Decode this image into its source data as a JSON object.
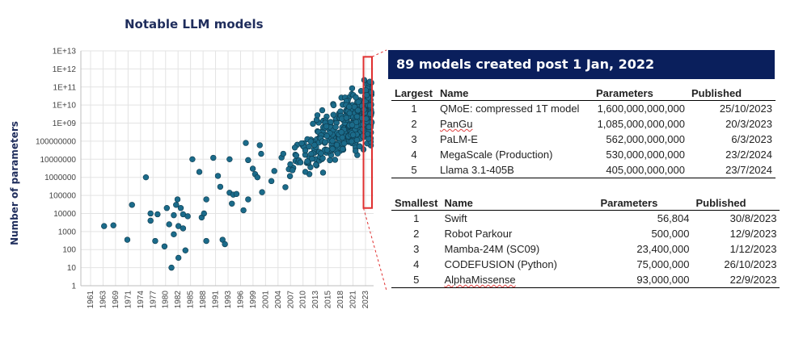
{
  "chart_data": {
    "type": "scatter",
    "title": "Notable LLM models",
    "xlabel": "",
    "ylabel": "Number of parameters",
    "y_scale": "log",
    "ylim": [
      1,
      10000000000000
    ],
    "y_ticks": [
      "1",
      "10",
      "100",
      "1000",
      "10000",
      "100000",
      "1000000",
      "10000000",
      "100000000",
      "1E+09",
      "1E+10",
      "1E+11",
      "1E+12",
      "1E+13"
    ],
    "x_ticks": [
      "1961",
      "1963",
      "1969",
      "1971",
      "1974",
      "1977",
      "1980",
      "1982",
      "1985",
      "1988",
      "1991",
      "1993",
      "1996",
      "1999",
      "2001",
      "2004",
      "2007",
      "2010",
      "2013",
      "2015",
      "2018",
      "2021",
      "2023"
    ],
    "xlim": [
      1961,
      2024
    ],
    "grid": true,
    "marker_color": "#1b6b8a",
    "highlight_box_color": "#e03030",
    "points": [
      [
        1966,
        2000
      ],
      [
        1968,
        2200
      ],
      [
        1971,
        350
      ],
      [
        1972,
        30000
      ],
      [
        1975,
        1000000
      ],
      [
        1976,
        4000
      ],
      [
        1976,
        10000
      ],
      [
        1977,
        300
      ],
      [
        1977.5,
        9000
      ],
      [
        1979,
        150
      ],
      [
        1979.5,
        20000
      ],
      [
        1980,
        2500
      ],
      [
        1980.5,
        10
      ],
      [
        1981,
        8000
      ],
      [
        1981,
        700
      ],
      [
        1981.5,
        30000
      ],
      [
        1981.8,
        60000
      ],
      [
        1982,
        2000
      ],
      [
        1982,
        35
      ],
      [
        1982.5,
        20000
      ],
      [
        1983,
        9000
      ],
      [
        1983,
        1500
      ],
      [
        1983.5,
        90
      ],
      [
        1984,
        7000
      ],
      [
        1985,
        10000000
      ],
      [
        1986.5,
        2000000
      ],
      [
        1987,
        6000
      ],
      [
        1987.5,
        10000
      ],
      [
        1988,
        300
      ],
      [
        1988,
        60000
      ],
      [
        1989.5,
        12000000
      ],
      [
        1990.5,
        1200000
      ],
      [
        1991,
        300000
      ],
      [
        1991.5,
        350
      ],
      [
        1992,
        200
      ],
      [
        1993,
        10000000
      ],
      [
        1993,
        140000
      ],
      [
        1993.5,
        35000
      ],
      [
        1993.8,
        110000
      ],
      [
        1994.5,
        120000
      ],
      [
        1996,
        15000
      ],
      [
        1996.5,
        80000000
      ],
      [
        1997,
        9000000
      ],
      [
        1997,
        60000
      ],
      [
        1998,
        3000000
      ],
      [
        1998.5,
        1500000
      ],
      [
        1999,
        1000000
      ],
      [
        1999.5,
        60000000
      ],
      [
        1999.8,
        20000000
      ],
      [
        2000,
        150000
      ]
    ],
    "highlight_region": {
      "x_from": 2022,
      "x_to": 2024
    }
  },
  "panel": {
    "header": "89 models created post 1 Jan, 2022",
    "largest": {
      "col_rank": "Largest",
      "col_name": "Name",
      "col_params": "Parameters",
      "col_published": "Published",
      "rows": [
        {
          "rank": "1",
          "name": "QMoE: compressed 1T model",
          "params": "1,600,000,000,000",
          "published": "25/10/2023"
        },
        {
          "rank": "2",
          "name": "PanGu",
          "params": "1,085,000,000,000",
          "published": "20/3/2023"
        },
        {
          "rank": "3",
          "name": "PaLM-E",
          "params": "562,000,000,000",
          "published": "6/3/2023"
        },
        {
          "rank": "4",
          "name": "MegaScale (Production)",
          "params": "530,000,000,000",
          "published": "23/2/2024"
        },
        {
          "rank": "5",
          "name": "Llama 3.1-405B",
          "params": "405,000,000,000",
          "published": "23/7/2024"
        }
      ]
    },
    "smallest": {
      "col_rank": "Smallest",
      "col_name": "Name",
      "col_params": "Parameters",
      "col_published": "Published",
      "rows": [
        {
          "rank": "1",
          "name": "Swift",
          "params": "56,804",
          "published": "30/8/2023"
        },
        {
          "rank": "2",
          "name": "Robot Parkour",
          "params": "500,000",
          "published": "12/9/2023"
        },
        {
          "rank": "3",
          "name": "Mamba-24M (SC09)",
          "params": "23,400,000",
          "published": "1/12/2023"
        },
        {
          "rank": "4",
          "name": "CODEFUSION (Python)",
          "params": "75,000,000",
          "published": "26/10/2023"
        },
        {
          "rank": "5",
          "name": "AlphaMissense",
          "params": "93,000,000",
          "published": "22/9/2023"
        }
      ]
    }
  }
}
